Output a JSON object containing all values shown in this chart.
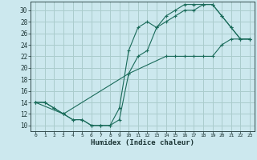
{
  "xlabel": "Humidex (Indice chaleur)",
  "bg_color": "#cce8ee",
  "grid_color": "#aacccc",
  "line_color": "#1a6b5a",
  "xlim": [
    -0.5,
    23.5
  ],
  "ylim": [
    9.0,
    31.5
  ],
  "xticks": [
    0,
    1,
    2,
    3,
    4,
    5,
    6,
    7,
    8,
    9,
    10,
    11,
    12,
    13,
    14,
    15,
    16,
    17,
    18,
    19,
    20,
    21,
    22,
    23
  ],
  "yticks": [
    10,
    12,
    14,
    16,
    18,
    20,
    22,
    24,
    26,
    28,
    30
  ],
  "line1_x": [
    0,
    1,
    2,
    3,
    4,
    5,
    6,
    7,
    8,
    9,
    10,
    11,
    12,
    13,
    14,
    15,
    16,
    17,
    18,
    19,
    20,
    21,
    22,
    23
  ],
  "line1_y": [
    14,
    14,
    13,
    12,
    11,
    11,
    10,
    10,
    10,
    11,
    19,
    22,
    23,
    27,
    28,
    29,
    30,
    30,
    31,
    31,
    29,
    27,
    25,
    25
  ],
  "line2_x": [
    0,
    1,
    2,
    3,
    4,
    5,
    6,
    7,
    8,
    9,
    10,
    11,
    12,
    13,
    14,
    15,
    16,
    17,
    18,
    19,
    20,
    21,
    22,
    23
  ],
  "line2_y": [
    14,
    14,
    13,
    12,
    11,
    11,
    10,
    10,
    10,
    13,
    23,
    27,
    28,
    27,
    29,
    30,
    31,
    31,
    31,
    31,
    29,
    27,
    25,
    25
  ],
  "line3_x": [
    0,
    3,
    10,
    14,
    15,
    16,
    17,
    18,
    19,
    20,
    21,
    22,
    23
  ],
  "line3_y": [
    14,
    12,
    19,
    22,
    22,
    22,
    22,
    22,
    22,
    24,
    25,
    25,
    25
  ]
}
